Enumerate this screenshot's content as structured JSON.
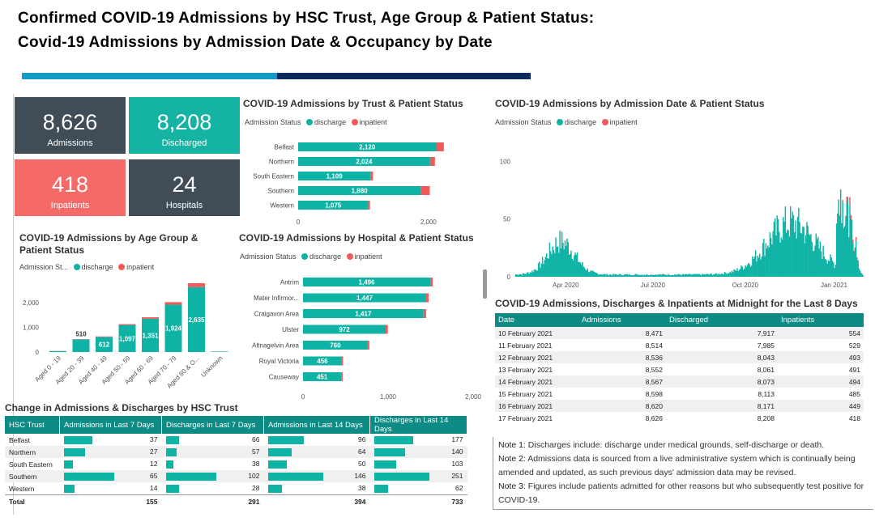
{
  "header": {
    "line1": "Confirmed COVID-19 Admissions by HSC Trust, Age Group & Patient Status:",
    "line2": "Covid-19 Admissions by Admission Date & Occupancy by Date"
  },
  "colors": {
    "discharge": "#0fb3a6",
    "inpatient": "#f05a5a",
    "dark": "#404d57",
    "teal": "#0e8b84"
  },
  "kpis": [
    {
      "value": "8,626",
      "label": "Admissions",
      "color": "#404d57"
    },
    {
      "value": "8,208",
      "label": "Discharged",
      "color": "#14b3a4"
    },
    {
      "value": "418",
      "label": "Inpatients",
      "color": "#f36a67"
    },
    {
      "value": "24",
      "label": "Hospitals",
      "color": "#404d57"
    }
  ],
  "legend": {
    "title": "Admission Status",
    "short_title": "Admission St...",
    "discharge": "discharge",
    "inpatient": "inpatient"
  },
  "trust_title": "COVID-19 Admissions by Trust & Patient Status",
  "age_title": "COVID-19 Admissions by Age Group & Patient Status",
  "hospital_title": "COVID-19 Admissions by Hospital & Patient Status",
  "date_title": "COVID-19 Admissions by Admission Date & Patient Status",
  "change_title": "Change in Admissions & Discharges by HSC Trust",
  "midnight_title": "COVID-19 Admissions, Discharges & Inpatients at Midnight for the Last 8 Days",
  "chart_data": [
    {
      "type": "bar",
      "title": "COVID-19 Admissions by Trust & Patient Status",
      "orientation": "horizontal",
      "categories": [
        "Belfast",
        "Northern",
        "South Eastern",
        "Southern",
        "Western"
      ],
      "series": [
        {
          "name": "discharge",
          "values": [
            2120,
            2024,
            1109,
            1880,
            1075
          ]
        },
        {
          "name": "inpatient",
          "values": [
            115,
            75,
            40,
            140,
            27
          ]
        }
      ],
      "xlim": [
        0,
        2300
      ],
      "xticks": [
        "0",
        "2,000"
      ]
    },
    {
      "type": "bar",
      "title": "COVID-19 Admissions by Age Group & Patient Status",
      "categories": [
        "Aged 0 - 19",
        "Aged 20 - 39",
        "Aged 40 - 49",
        "Aged 50 - 59",
        "Aged 60 - 69",
        "Aged 70 - 79",
        "Aged 80 & O...",
        "Unknown"
      ],
      "series": [
        {
          "name": "discharge",
          "values": [
            40,
            510,
            612,
            1097,
            1351,
            1924,
            2635,
            5
          ]
        },
        {
          "name": "inpatient",
          "values": [
            3,
            10,
            20,
            35,
            60,
            100,
            160,
            0
          ]
        }
      ],
      "ylim": [
        0,
        2800
      ],
      "yticks": [
        "0",
        "1,000",
        "2,000"
      ],
      "labels": [
        "",
        "510",
        "612",
        "1,097",
        "1,351",
        "1,924",
        "2,635",
        ""
      ]
    },
    {
      "type": "bar",
      "title": "COVID-19 Admissions by Hospital & Patient Status",
      "orientation": "horizontal",
      "categories": [
        "Antrim",
        "Mater Infirmor...",
        "Craigavon Area",
        "Ulster",
        "Altnagelvin Area",
        "Royal Victoria",
        "Causeway"
      ],
      "series": [
        {
          "name": "discharge",
          "values": [
            1496,
            1447,
            1417,
            972,
            760,
            456,
            451
          ]
        },
        {
          "name": "inpatient",
          "values": [
            30,
            30,
            30,
            25,
            20,
            15,
            15
          ]
        }
      ],
      "xlim": [
        0,
        2000
      ],
      "xticks": [
        "0",
        "1,000",
        "2,000"
      ]
    },
    {
      "type": "bar",
      "title": "COVID-19 Admissions by Admission Date & Patient Status",
      "x_ticks": [
        "Apr 2020",
        "Jul 2020",
        "Oct 2020",
        "Jan 2021"
      ],
      "y_ticks": [
        "0",
        "50",
        "100"
      ],
      "ylim": [
        0,
        110
      ],
      "series": [
        {
          "name": "discharge"
        },
        {
          "name": "inpatient"
        }
      ]
    }
  ],
  "change_table": {
    "headers": [
      "HSC Trust",
      "Admissions in Last 7 Days",
      "Discharges in Last 7 Days",
      "Admissions in Last 14 Days",
      "Discharges in Last 14 Days"
    ],
    "rows": [
      {
        "trust": "Belfast",
        "a7": "37",
        "d7": "66",
        "a14": "96",
        "d14": "177",
        "b": [
          0.57,
          0.26,
          0.66,
          0.71
        ]
      },
      {
        "trust": "Northern",
        "a7": "27",
        "d7": "57",
        "a14": "64",
        "d14": "140",
        "b": [
          0.42,
          0.22,
          0.44,
          0.56
        ]
      },
      {
        "trust": "South Eastern",
        "a7": "12",
        "d7": "38",
        "a14": "50",
        "d14": "103",
        "b": [
          0.18,
          0.15,
          0.34,
          0.41
        ]
      },
      {
        "trust": "Southern",
        "a7": "65",
        "d7": "102",
        "a14": "146",
        "d14": "251",
        "b": [
          1.0,
          1.0,
          1.0,
          1.0
        ]
      },
      {
        "trust": "Western",
        "a7": "14",
        "d7": "28",
        "a14": "38",
        "d14": "62",
        "b": [
          0.22,
          0.27,
          0.26,
          0.25
        ]
      }
    ],
    "total": {
      "label": "Total",
      "a7": "155",
      "d7": "291",
      "a14": "394",
      "d14": "733"
    }
  },
  "midnight_table": {
    "headers": [
      "Date",
      "Admissions",
      "Discharged",
      "Inpatients"
    ],
    "rows": [
      [
        "10 February 2021",
        "8,471",
        "7,917",
        "554"
      ],
      [
        "11 February 2021",
        "8,514",
        "7,985",
        "529"
      ],
      [
        "12 February 2021",
        "8,536",
        "8,043",
        "493"
      ],
      [
        "13 February 2021",
        "8,552",
        "8,061",
        "491"
      ],
      [
        "14 February 2021",
        "8,567",
        "8,073",
        "494"
      ],
      [
        "15 February 2021",
        "8,598",
        "8,113",
        "485"
      ],
      [
        "16 February 2021",
        "8,620",
        "8,171",
        "449"
      ],
      [
        "17 February 2021",
        "8,626",
        "8,208",
        "418"
      ]
    ]
  },
  "notes": [
    {
      "label": "Note 1:",
      "text": " Discharges include: discharge under medical grounds, self-discharge or death."
    },
    {
      "label": "Note 2:",
      "text": " Admissions data is sourced from a live administrative system which is continually being amended and updated, as such previous days' admission data may be revised."
    },
    {
      "label": "Note 3:",
      "text": " Figures include patients admitted for other reasons but who subsequently test positive for COVID-19."
    }
  ]
}
